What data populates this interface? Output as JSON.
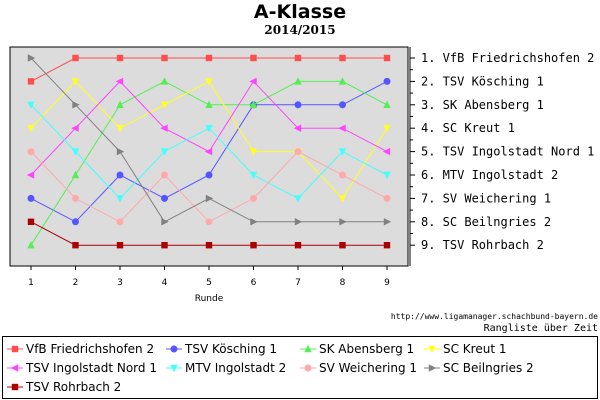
{
  "title": "A-Klasse",
  "subtitle": "2014/2015",
  "url": "http://www.ligamanager.schachbund-bayern.de",
  "subcaption": "Rangliste über Zeit",
  "chart_data": {
    "type": "line",
    "xlabel": "Runde",
    "x": [
      1,
      2,
      3,
      4,
      5,
      6,
      7,
      8,
      9
    ],
    "ylim": [
      1,
      9
    ],
    "y_inverted": true,
    "grid": false,
    "legend_position": "bottom",
    "rank_labels": [
      "1. VfB Friedrichshofen 2",
      "2. TSV Kösching 1",
      "3. SK Abensberg 1",
      "4. SC Kreut 1",
      "5. TSV Ingolstadt Nord 1",
      "6. MTV Ingolstadt 2",
      "7. SV Weichering 1",
      "8. SC Beilngries 2",
      "9. TSV Rohrbach 2"
    ],
    "series": [
      {
        "name": "VfB Friedrichshofen 2",
        "color": "#ff4d4d",
        "marker": "square",
        "values": [
          2,
          1,
          1,
          1,
          1,
          1,
          1,
          1,
          1
        ]
      },
      {
        "name": "TSV Kösching 1",
        "color": "#5555ff",
        "marker": "circle",
        "values": [
          7,
          8,
          6,
          7,
          6,
          3,
          3,
          3,
          2
        ]
      },
      {
        "name": "SK Abensberg 1",
        "color": "#55ee55",
        "marker": "triangle-up",
        "values": [
          9,
          6,
          3,
          2,
          3,
          3,
          2,
          2,
          3
        ]
      },
      {
        "name": "SC Kreut 1",
        "color": "#ffff22",
        "marker": "triangle-down",
        "values": [
          4,
          2,
          4,
          3,
          2,
          5,
          5,
          7,
          4
        ]
      },
      {
        "name": "TSV Ingolstadt Nord 1",
        "color": "#ff44ff",
        "marker": "triangle-left",
        "values": [
          6,
          4,
          2,
          4,
          5,
          2,
          4,
          4,
          5
        ]
      },
      {
        "name": "MTV Ingolstadt 2",
        "color": "#44ffff",
        "marker": "triangle-down",
        "values": [
          3,
          5,
          7,
          5,
          4,
          6,
          7,
          5,
          6
        ]
      },
      {
        "name": "SV Weichering 1",
        "color": "#ffaaaa",
        "marker": "circle",
        "values": [
          5,
          7,
          8,
          6,
          8,
          7,
          5,
          6,
          7
        ]
      },
      {
        "name": "SC Beilngries 2",
        "color": "#808080",
        "marker": "triangle-right",
        "values": [
          1,
          3,
          5,
          8,
          7,
          8,
          8,
          8,
          8
        ]
      },
      {
        "name": "TSV Rohrbach 2",
        "color": "#aa0000",
        "marker": "square",
        "values": [
          8,
          9,
          9,
          9,
          9,
          9,
          9,
          9,
          9
        ]
      }
    ]
  }
}
